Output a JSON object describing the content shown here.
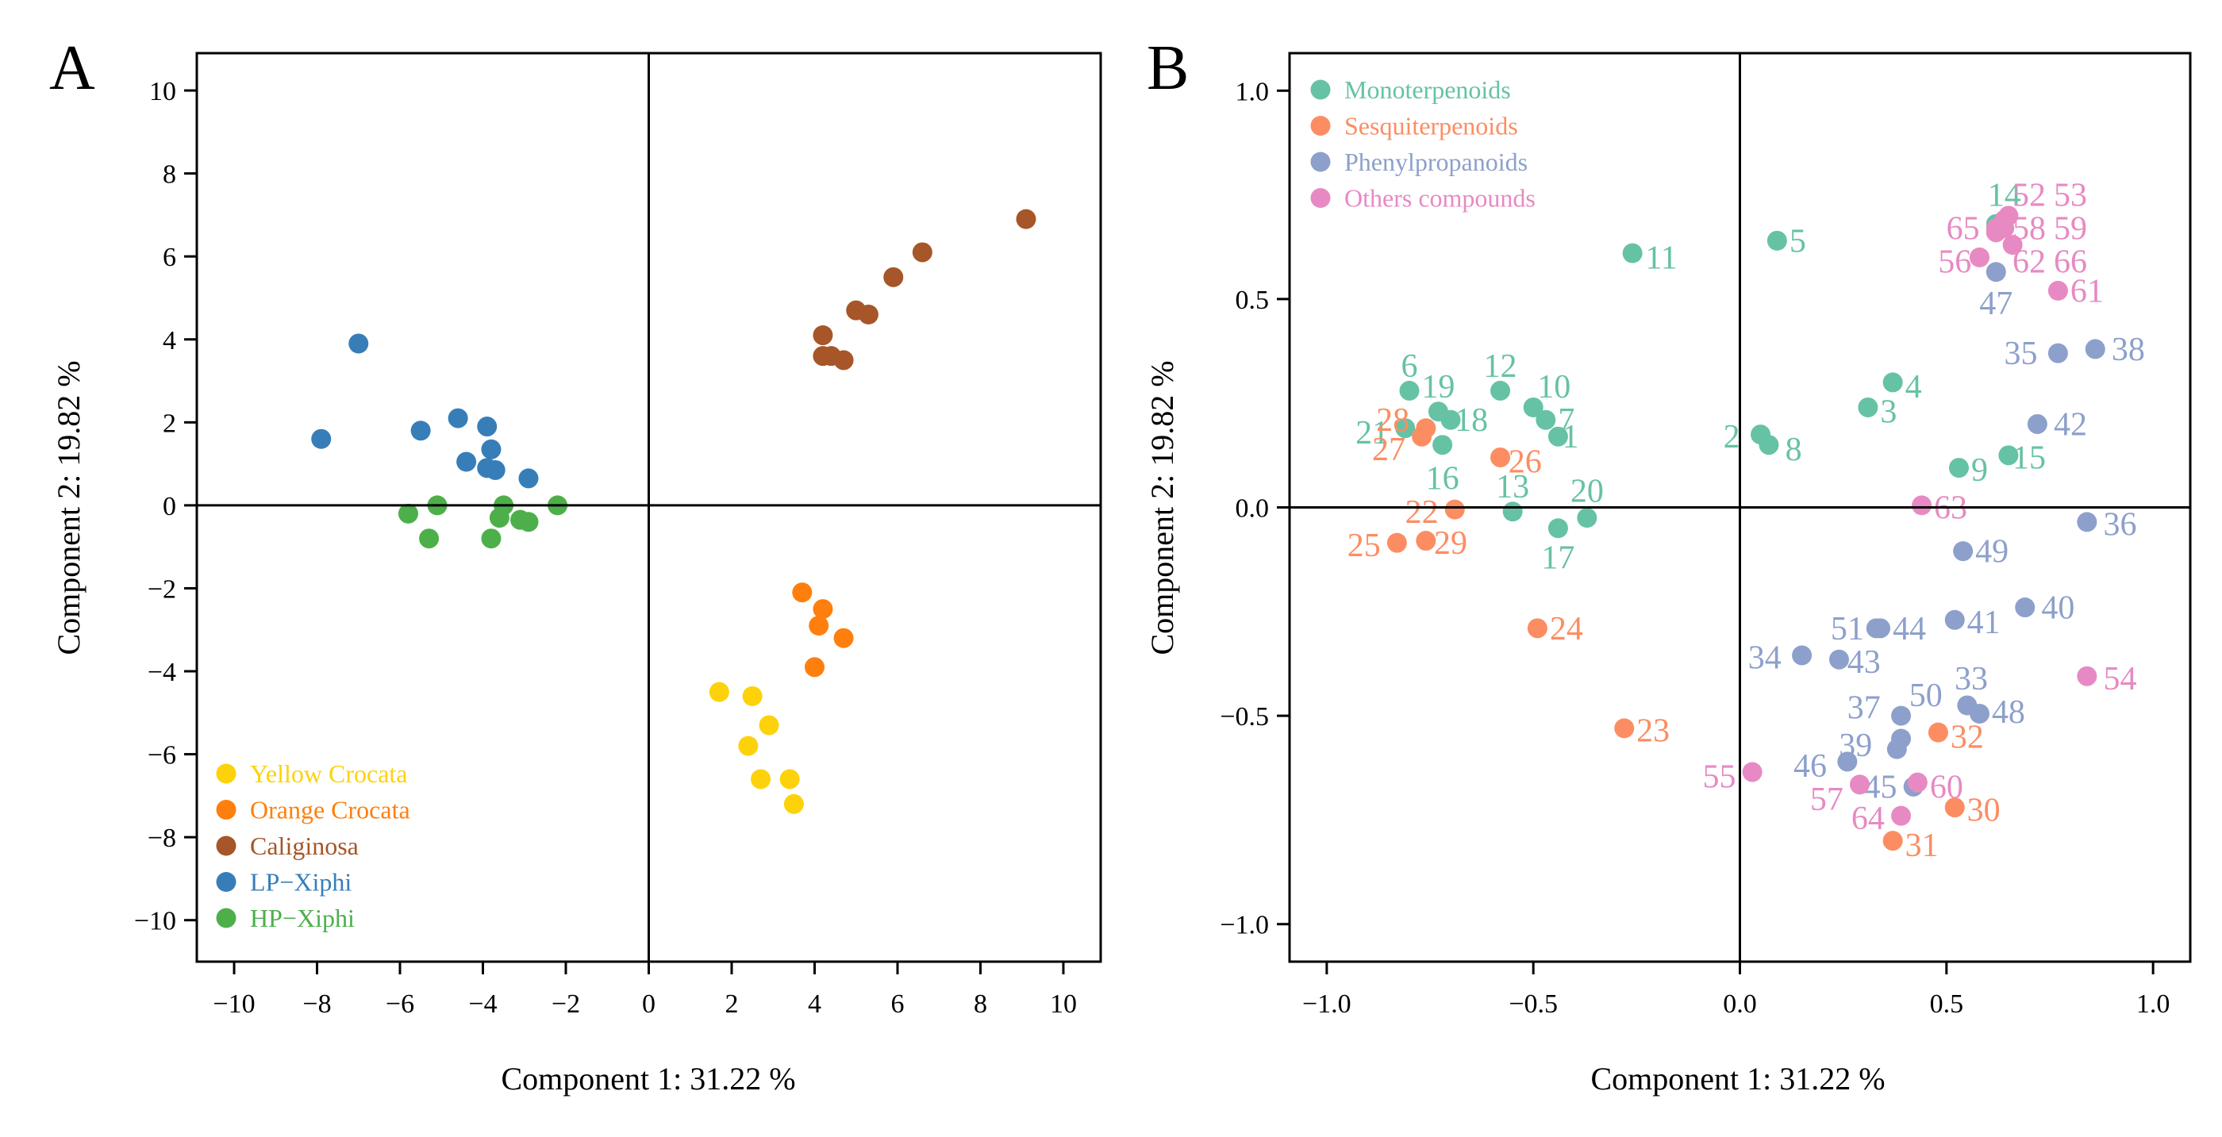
{
  "chart_data": [
    {
      "panel": "A",
      "type": "scatter",
      "xlabel": "Component 1:  31.22 %",
      "ylabel": "Component 2:  19.82 %",
      "xlim": [
        -10.9,
        10.9
      ],
      "ylim": [
        -11.0,
        10.9
      ],
      "xticks": [
        -10,
        -8,
        -6,
        -4,
        -2,
        0,
        2,
        4,
        6,
        8,
        10
      ],
      "yticks": [
        10,
        8,
        6,
        4,
        2,
        0,
        -2,
        -4,
        -6,
        -8,
        -10
      ],
      "xtick_labels": [
        "−10",
        "−8",
        "−6",
        "−4",
        "−2",
        "0",
        "2",
        "4",
        "6",
        "8",
        "10"
      ],
      "ytick_labels": [
        "10",
        "8",
        "6",
        "4",
        "2",
        "0",
        "−2",
        "−4",
        "−6",
        "−8",
        "−10"
      ],
      "legend_position": "bottom-left",
      "series": [
        {
          "name": "Yellow Crocata",
          "color": "#FDD20A",
          "points": [
            [
              1.7,
              -4.5
            ],
            [
              2.5,
              -4.6
            ],
            [
              2.9,
              -5.3
            ],
            [
              2.4,
              -5.8
            ],
            [
              2.7,
              -6.6
            ],
            [
              3.4,
              -6.6
            ],
            [
              3.5,
              -7.2
            ]
          ]
        },
        {
          "name": "Orange Crocata",
          "color": "#FF7F0E",
          "points": [
            [
              3.7,
              -2.1
            ],
            [
              4.2,
              -2.5
            ],
            [
              4.1,
              -2.9
            ],
            [
              4.7,
              -3.2
            ],
            [
              4.0,
              -3.9
            ]
          ]
        },
        {
          "name": "Caliginosa",
          "color": "#A65628",
          "points": [
            [
              9.1,
              6.9
            ],
            [
              6.6,
              6.1
            ],
            [
              5.9,
              5.5
            ],
            [
              5.0,
              4.7
            ],
            [
              5.3,
              4.6
            ],
            [
              4.2,
              4.1
            ],
            [
              4.2,
              3.6
            ],
            [
              4.4,
              3.6
            ],
            [
              4.7,
              3.5
            ]
          ]
        },
        {
          "name": "LP−Xiphi",
          "color": "#377EB8",
          "points": [
            [
              -7.0,
              3.9
            ],
            [
              -7.9,
              1.6
            ],
            [
              -5.5,
              1.8
            ],
            [
              -4.6,
              2.1
            ],
            [
              -3.9,
              1.9
            ],
            [
              -3.8,
              1.35
            ],
            [
              -4.4,
              1.05
            ],
            [
              -3.9,
              0.9
            ],
            [
              -3.7,
              0.85
            ],
            [
              -2.9,
              0.65
            ]
          ]
        },
        {
          "name": "HP−Xiphi",
          "color": "#4DAF4A",
          "points": [
            [
              -5.1,
              0.0
            ],
            [
              -5.8,
              -0.2
            ],
            [
              -3.5,
              0.0
            ],
            [
              -3.6,
              -0.3
            ],
            [
              -3.1,
              -0.35
            ],
            [
              -2.9,
              -0.4
            ],
            [
              -2.2,
              0.0
            ],
            [
              -5.3,
              -0.8
            ],
            [
              -3.8,
              -0.8
            ]
          ]
        }
      ]
    },
    {
      "panel": "B",
      "type": "scatter",
      "xlabel": "Component 1:  31.22 %",
      "ylabel": "Component 2:  19.82 %",
      "xlim": [
        -1.09,
        1.09
      ],
      "ylim": [
        -1.09,
        1.09
      ],
      "xticks": [
        -1.0,
        -0.5,
        0.0,
        0.5,
        1.0
      ],
      "yticks": [
        1.0,
        0.5,
        0.0,
        -0.5,
        -1.0
      ],
      "xtick_labels": [
        "−1.0",
        "−0.5",
        "0.0",
        "0.5",
        "1.0"
      ],
      "ytick_labels": [
        "1.0",
        "0.5",
        "0.0",
        "−0.5",
        "−1.0"
      ],
      "legend_position": "top-left",
      "series": [
        {
          "name": "Monoterpenoids",
          "color": "#66C2A5",
          "points": [
            {
              "x": -0.44,
              "y": 0.17,
              "label": "1",
              "lx": -0.41,
              "ly": 0.17
            },
            {
              "x": 0.05,
              "y": 0.175,
              "label": "2",
              "lx": -0.02,
              "ly": 0.17
            },
            {
              "x": 0.31,
              "y": 0.24,
              "label": "3",
              "lx": 0.36,
              "ly": 0.23
            },
            {
              "x": 0.37,
              "y": 0.3,
              "label": "4",
              "lx": 0.42,
              "ly": 0.29
            },
            {
              "x": 0.09,
              "y": 0.64,
              "label": "5",
              "lx": 0.14,
              "ly": 0.64
            },
            {
              "x": -0.8,
              "y": 0.28,
              "label": "6",
              "lx": -0.8,
              "ly": 0.34
            },
            {
              "x": -0.47,
              "y": 0.21,
              "label": "7",
              "lx": -0.42,
              "ly": 0.21
            },
            {
              "x": 0.07,
              "y": 0.15,
              "label": "8",
              "lx": 0.13,
              "ly": 0.14
            },
            {
              "x": 0.53,
              "y": 0.095,
              "label": "9",
              "lx": 0.58,
              "ly": 0.09
            },
            {
              "x": -0.5,
              "y": 0.24,
              "label": "10",
              "lx": -0.45,
              "ly": 0.29
            },
            {
              "x": -0.26,
              "y": 0.61,
              "label": "11",
              "lx": -0.19,
              "ly": 0.6
            },
            {
              "x": -0.58,
              "y": 0.28,
              "label": "12",
              "lx": -0.58,
              "ly": 0.34
            },
            {
              "x": -0.55,
              "y": -0.01,
              "label": "13",
              "lx": -0.55,
              "ly": 0.05
            },
            {
              "x": 0.62,
              "y": 0.68,
              "label": "14",
              "lx": 0.64,
              "ly": 0.75
            },
            {
              "x": 0.65,
              "y": 0.125,
              "label": "15",
              "lx": 0.7,
              "ly": 0.12
            },
            {
              "x": -0.72,
              "y": 0.15,
              "label": "16",
              "lx": -0.72,
              "ly": 0.07
            },
            {
              "x": -0.44,
              "y": -0.05,
              "label": "17",
              "lx": -0.44,
              "ly": -0.12
            },
            {
              "x": -0.7,
              "y": 0.21,
              "label": "18",
              "lx": -0.65,
              "ly": 0.21
            },
            {
              "x": -0.73,
              "y": 0.23,
              "label": "19",
              "lx": -0.73,
              "ly": 0.29
            },
            {
              "x": -0.37,
              "y": -0.025,
              "label": "20",
              "lx": -0.37,
              "ly": 0.04
            },
            {
              "x": -0.81,
              "y": 0.19,
              "label": "21",
              "lx": -0.89,
              "ly": 0.18
            }
          ]
        },
        {
          "name": "Sesquiterpenoids",
          "color": "#FC8D62",
          "points": [
            {
              "x": -0.69,
              "y": -0.005,
              "label": "22",
              "lx": -0.77,
              "ly": -0.01
            },
            {
              "x": -0.28,
              "y": -0.53,
              "label": "23",
              "lx": -0.21,
              "ly": -0.535
            },
            {
              "x": -0.49,
              "y": -0.29,
              "label": "24",
              "lx": -0.42,
              "ly": -0.29
            },
            {
              "x": -0.83,
              "y": -0.085,
              "label": "25",
              "lx": -0.91,
              "ly": -0.09
            },
            {
              "x": -0.58,
              "y": 0.12,
              "label": "26",
              "lx": -0.52,
              "ly": 0.11
            },
            {
              "x": -0.77,
              "y": 0.17,
              "label": "27",
              "lx": -0.85,
              "ly": 0.14
            },
            {
              "x": -0.76,
              "y": 0.19,
              "label": "28",
              "lx": -0.84,
              "ly": 0.21
            },
            {
              "x": -0.76,
              "y": -0.08,
              "label": "29",
              "lx": -0.7,
              "ly": -0.085
            },
            {
              "x": 0.52,
              "y": -0.72,
              "label": "30",
              "lx": 0.59,
              "ly": -0.725
            },
            {
              "x": 0.37,
              "y": -0.8,
              "label": "31",
              "lx": 0.44,
              "ly": -0.81
            },
            {
              "x": 0.48,
              "y": -0.54,
              "label": "32",
              "lx": 0.55,
              "ly": -0.55
            }
          ]
        },
        {
          "name": "Phenylpropanoids",
          "color": "#8DA0CB",
          "points": [
            {
              "x": 0.55,
              "y": -0.475,
              "label": "33",
              "lx": 0.56,
              "ly": -0.41
            },
            {
              "x": 0.15,
              "y": -0.355,
              "label": "34",
              "lx": 0.06,
              "ly": -0.36
            },
            {
              "x": 0.77,
              "y": 0.37,
              "label": "35",
              "lx": 0.68,
              "ly": 0.37
            },
            {
              "x": 0.84,
              "y": -0.035,
              "label": "36",
              "lx": 0.92,
              "ly": -0.04
            },
            {
              "x": 0.39,
              "y": -0.5,
              "label": "37",
              "lx": 0.3,
              "ly": -0.48
            },
            {
              "x": 0.86,
              "y": 0.38,
              "label": "38",
              "lx": 0.94,
              "ly": 0.38
            },
            {
              "x": 0.38,
              "y": -0.58,
              "label": "39",
              "lx": 0.28,
              "ly": -0.57
            },
            {
              "x": 0.69,
              "y": -0.24,
              "label": "40",
              "lx": 0.77,
              "ly": -0.24
            },
            {
              "x": 0.52,
              "y": -0.27,
              "label": "41",
              "lx": 0.59,
              "ly": -0.275
            },
            {
              "x": 0.72,
              "y": 0.2,
              "label": "42",
              "lx": 0.8,
              "ly": 0.2
            },
            {
              "x": 0.24,
              "y": -0.365,
              "label": "43",
              "lx": 0.3,
              "ly": -0.37
            },
            {
              "x": 0.34,
              "y": -0.29,
              "label": "44",
              "lx": 0.41,
              "ly": -0.29
            },
            {
              "x": 0.42,
              "y": -0.67,
              "label": "45",
              "lx": 0.34,
              "ly": -0.67
            },
            {
              "x": 0.26,
              "y": -0.61,
              "label": "46",
              "lx": 0.17,
              "ly": -0.62
            },
            {
              "x": 0.62,
              "y": 0.565,
              "label": "47",
              "lx": 0.62,
              "ly": 0.49
            },
            {
              "x": 0.58,
              "y": -0.495,
              "label": "48",
              "lx": 0.65,
              "ly": -0.49
            },
            {
              "x": 0.54,
              "y": -0.105,
              "label": "49",
              "lx": 0.61,
              "ly": -0.105
            },
            {
              "x": 0.39,
              "y": -0.555,
              "label": "50",
              "lx": 0.45,
              "ly": -0.45
            },
            {
              "x": 0.33,
              "y": -0.29,
              "label": "51",
              "lx": 0.26,
              "ly": -0.29
            }
          ]
        },
        {
          "name": "Others compounds",
          "color": "#E78AC3",
          "points": [
            {
              "x": 0.64,
              "y": 0.69,
              "label": "52",
              "lx": 0.7,
              "ly": 0.75
            },
            {
              "x": 0.65,
              "y": 0.7,
              "label": "53",
              "lx": 0.8,
              "ly": 0.75
            },
            {
              "x": 0.84,
              "y": -0.405,
              "label": "54",
              "lx": 0.92,
              "ly": -0.41
            },
            {
              "x": 0.03,
              "y": -0.635,
              "label": "55",
              "lx": -0.05,
              "ly": -0.645
            },
            {
              "x": 0.58,
              "y": 0.6,
              "label": "56",
              "lx": 0.52,
              "ly": 0.59
            },
            {
              "x": 0.29,
              "y": -0.665,
              "label": "57",
              "lx": 0.21,
              "ly": -0.7
            },
            {
              "x": 0.635,
              "y": 0.675,
              "label": "58",
              "lx": 0.7,
              "ly": 0.67
            },
            {
              "x": 0.64,
              "y": 0.67,
              "label": "59",
              "lx": 0.8,
              "ly": 0.67
            },
            {
              "x": 0.43,
              "y": -0.66,
              "label": "60",
              "lx": 0.5,
              "ly": -0.67
            },
            {
              "x": 0.77,
              "y": 0.52,
              "label": "61",
              "lx": 0.84,
              "ly": 0.52
            },
            {
              "x": 0.66,
              "y": 0.63,
              "label": "62",
              "lx": 0.7,
              "ly": 0.59
            },
            {
              "x": 0.44,
              "y": 0.005,
              "label": "63",
              "lx": 0.51,
              "ly": 0.0
            },
            {
              "x": 0.39,
              "y": -0.74,
              "label": "64",
              "lx": 0.31,
              "ly": -0.745
            },
            {
              "x": 0.62,
              "y": 0.66,
              "label": "65",
              "lx": 0.54,
              "ly": 0.67
            },
            {
              "x": 0.62,
              "y": 0.67,
              "label": "66",
              "lx": 0.8,
              "ly": 0.59
            }
          ]
        }
      ]
    }
  ]
}
